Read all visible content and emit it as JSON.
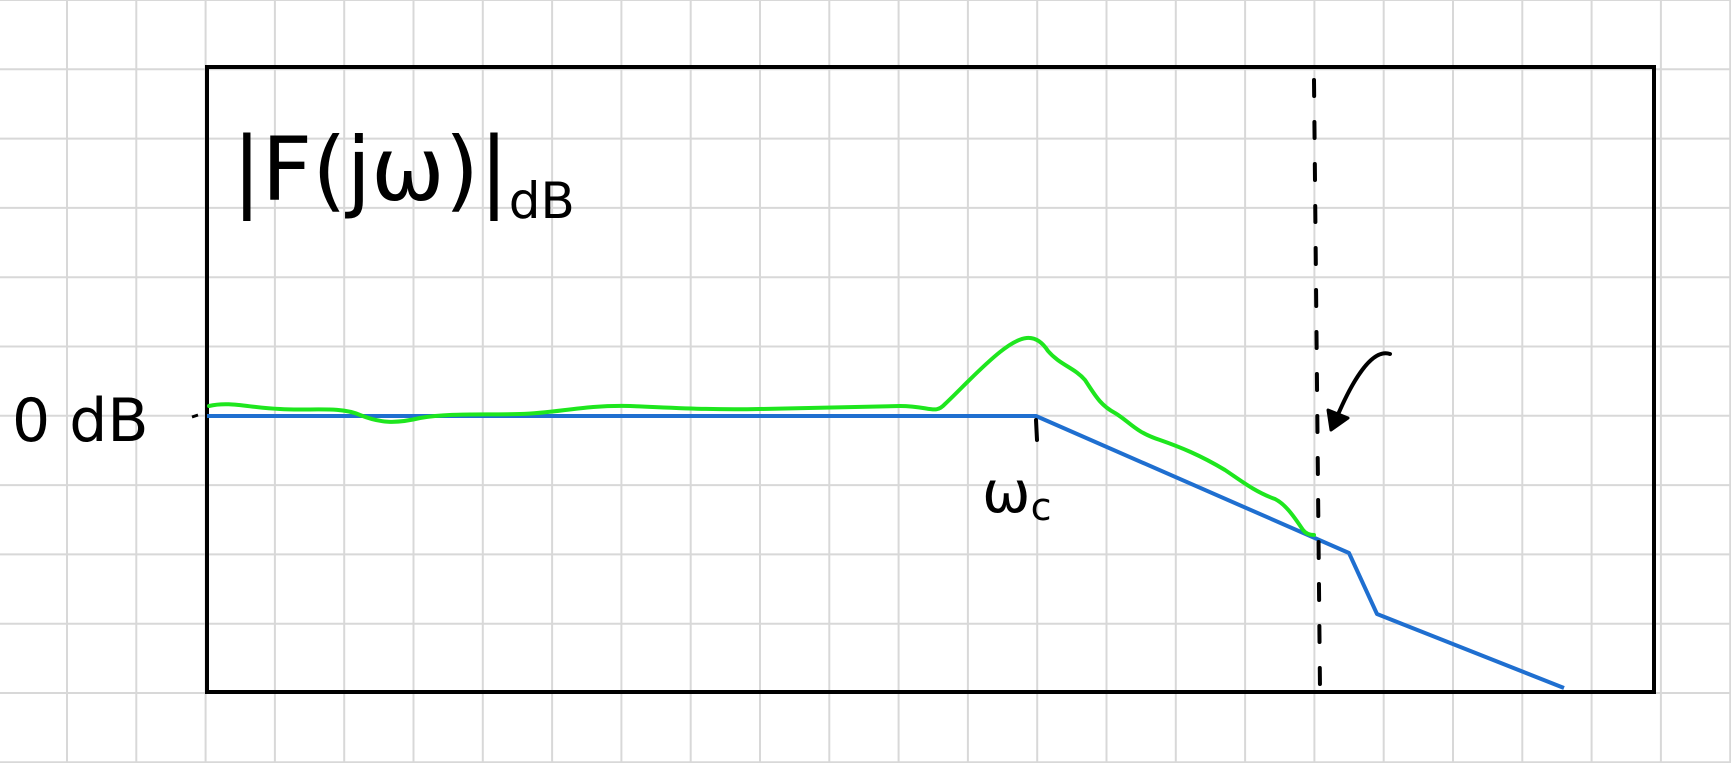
{
  "colors": {
    "background": "#ffffff",
    "grid": "#d8d8d8",
    "frame": "#000000",
    "asymptote": "#1f6fd0",
    "response": "#1ee61e",
    "marker": "#000000"
  },
  "labels": {
    "magnitude": "|F(jω)|",
    "magnitude_unit": "dB",
    "zero_level": "0 dB",
    "cutoff_symbol": "ω",
    "cutoff_subscript": "c"
  }
}
